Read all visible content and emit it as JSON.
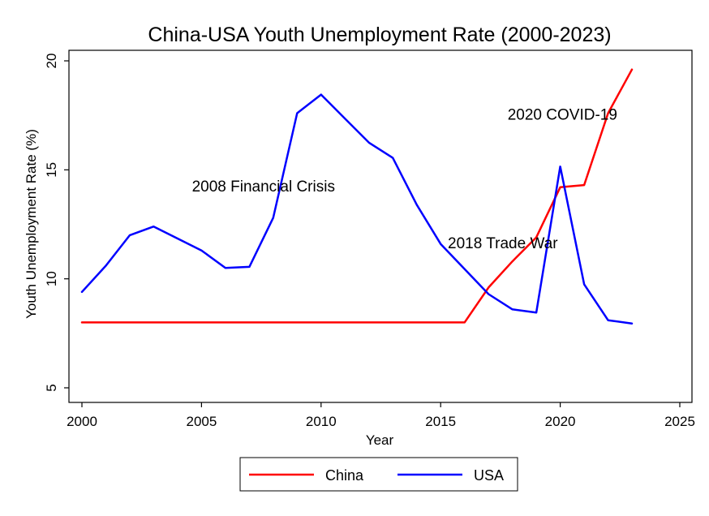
{
  "chart_data": {
    "type": "line",
    "title": "China-USA Youth Unemployment Rate (2000-2023)",
    "xlabel": "Year",
    "ylabel": "Youth Unemployment Rate (%)",
    "xlim": [
      2000,
      2025
    ],
    "ylim": [
      5,
      20
    ],
    "xticks": [
      2000,
      2005,
      2010,
      2015,
      2020,
      2025
    ],
    "yticks": [
      5,
      10,
      15,
      20
    ],
    "grid": false,
    "legend": "bottom",
    "series": [
      {
        "name": "China",
        "color": "#ff0000",
        "x": [
          2000,
          2001,
          2002,
          2003,
          2004,
          2005,
          2006,
          2007,
          2008,
          2009,
          2010,
          2011,
          2012,
          2013,
          2014,
          2015,
          2016,
          2017,
          2018,
          2019,
          2020,
          2021,
          2022,
          2023
        ],
        "values": [
          8,
          8,
          8,
          8,
          8,
          8,
          8,
          8,
          8,
          8,
          8,
          8,
          8,
          8,
          8,
          8,
          8,
          9.6,
          10.8,
          11.9,
          14.2,
          14.3,
          17.6,
          19.6
        ]
      },
      {
        "name": "USA",
        "color": "#0000ff",
        "x": [
          2000,
          2001,
          2002,
          2003,
          2004,
          2005,
          2006,
          2007,
          2008,
          2009,
          2010,
          2011,
          2012,
          2013,
          2014,
          2015,
          2016,
          2017,
          2018,
          2019,
          2020,
          2021,
          2022,
          2023
        ],
        "values": [
          9.4,
          10.6,
          12.0,
          12.4,
          11.85,
          11.3,
          10.5,
          10.55,
          12.8,
          17.6,
          18.45,
          17.35,
          16.25,
          15.55,
          13.4,
          11.6,
          10.45,
          9.3,
          8.6,
          8.45,
          15.15,
          9.75,
          8.1,
          7.95
        ]
      }
    ],
    "annotations": [
      {
        "text": "2008 Financial Crisis",
        "x": 2004.6,
        "y": 14.0
      },
      {
        "text": "2018 Trade War",
        "x": 2015.3,
        "y": 11.4
      },
      {
        "text": "2020 COVID-19",
        "x": 2017.8,
        "y": 17.3
      }
    ]
  }
}
